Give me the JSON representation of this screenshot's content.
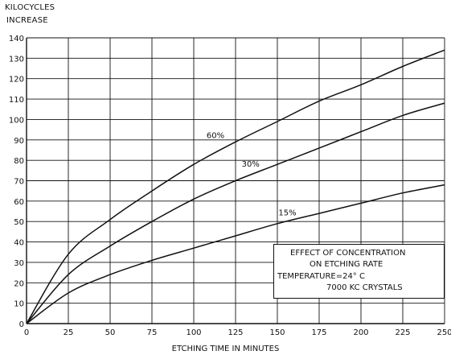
{
  "chart_data": {
    "type": "line",
    "ylabel_line1": "KILOCYCLES",
    "ylabel_line2": "INCREASE",
    "xlabel": "ETCHING TIME IN MINUTES",
    "xlim": [
      0,
      250
    ],
    "ylim": [
      0,
      140
    ],
    "x_ticks": [
      0,
      25,
      50,
      75,
      100,
      125,
      150,
      175,
      200,
      225,
      250
    ],
    "y_ticks": [
      0,
      10,
      20,
      30,
      40,
      50,
      60,
      70,
      80,
      90,
      100,
      110,
      120,
      130,
      140
    ],
    "grid": true,
    "x": [
      0,
      25,
      50,
      75,
      100,
      125,
      150,
      175,
      200,
      225,
      250
    ],
    "series": [
      {
        "name": "60%",
        "values": [
          0,
          34,
          51,
          65,
          78,
          89,
          99,
          109,
          117,
          126,
          134
        ]
      },
      {
        "name": "30%",
        "values": [
          0,
          24,
          38,
          50,
          61,
          70,
          78,
          86,
          94,
          102,
          108
        ]
      },
      {
        "name": "15%",
        "values": [
          0,
          15,
          24,
          31,
          37,
          43,
          49,
          54,
          59,
          64,
          68
        ]
      }
    ],
    "annotation": {
      "line1": "EFFECT OF CONCENTRATION",
      "line2": "ON ETCHING RATE",
      "line3": "TEMPERATURE=24° C",
      "line4": "7000 KC CRYSTALS"
    },
    "colors": {
      "line": "#111111",
      "grid": "#111111",
      "background": "#ffffff"
    }
  }
}
